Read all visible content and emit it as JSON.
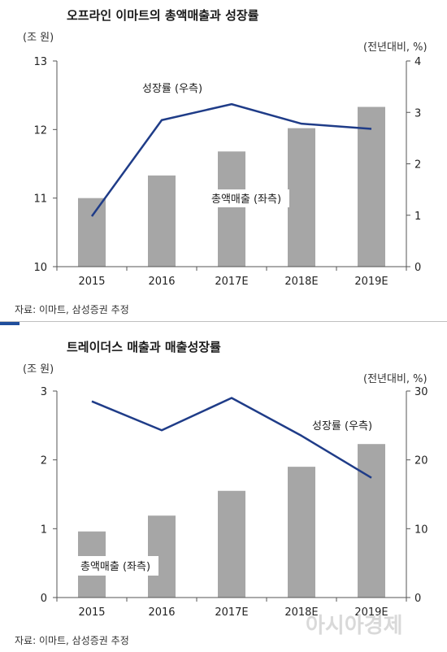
{
  "chart_data": [
    {
      "type": "bar+line",
      "title": "오프라인 이마트의 총액매출과 성장률",
      "left_unit": "(조 원)",
      "right_unit": "(전년대비, %)",
      "categories": [
        "2015",
        "2016",
        "2017E",
        "2018E",
        "2019E"
      ],
      "left_ylim": [
        10,
        13
      ],
      "left_ticks": [
        "10",
        "11",
        "12",
        "13"
      ],
      "right_ylim": [
        0,
        4
      ],
      "right_ticks": [
        "0",
        "1",
        "2",
        "3",
        "4"
      ],
      "series": [
        {
          "name": "총액매출 (좌측)",
          "type": "bar",
          "axis": "left",
          "values": [
            11.0,
            11.33,
            11.68,
            12.02,
            12.33
          ]
        },
        {
          "name": "성장률 (우측)",
          "type": "line",
          "axis": "right",
          "values": [
            0.98,
            2.85,
            3.16,
            2.78,
            2.68
          ]
        }
      ],
      "source": "자료: 이마트, 삼성증권 추정"
    },
    {
      "type": "bar+line",
      "title": "트레이더스 매출과 매출성장률",
      "left_unit": "(조 원)",
      "right_unit": "(전년대비, %)",
      "categories": [
        "2015",
        "2016",
        "2017E",
        "2018E",
        "2019E"
      ],
      "left_ylim": [
        0,
        3
      ],
      "left_ticks": [
        "0",
        "1",
        "2",
        "3"
      ],
      "right_ylim": [
        0,
        30
      ],
      "right_ticks": [
        "0",
        "10",
        "20",
        "30"
      ],
      "series": [
        {
          "name": "총액매출 (좌측)",
          "type": "bar",
          "axis": "left",
          "values": [
            0.96,
            1.19,
            1.55,
            1.9,
            2.23
          ]
        },
        {
          "name": "성장률 (우측)",
          "type": "line",
          "axis": "right",
          "values": [
            28.5,
            24.3,
            29.0,
            23.5,
            17.4
          ]
        }
      ],
      "source": "자료: 이마트, 삼성증권 추정"
    }
  ],
  "watermark": "아시아경제",
  "colors": {
    "bar": "#a6a6a6",
    "line": "#1f3c88",
    "accent": "#1f4e9c"
  }
}
